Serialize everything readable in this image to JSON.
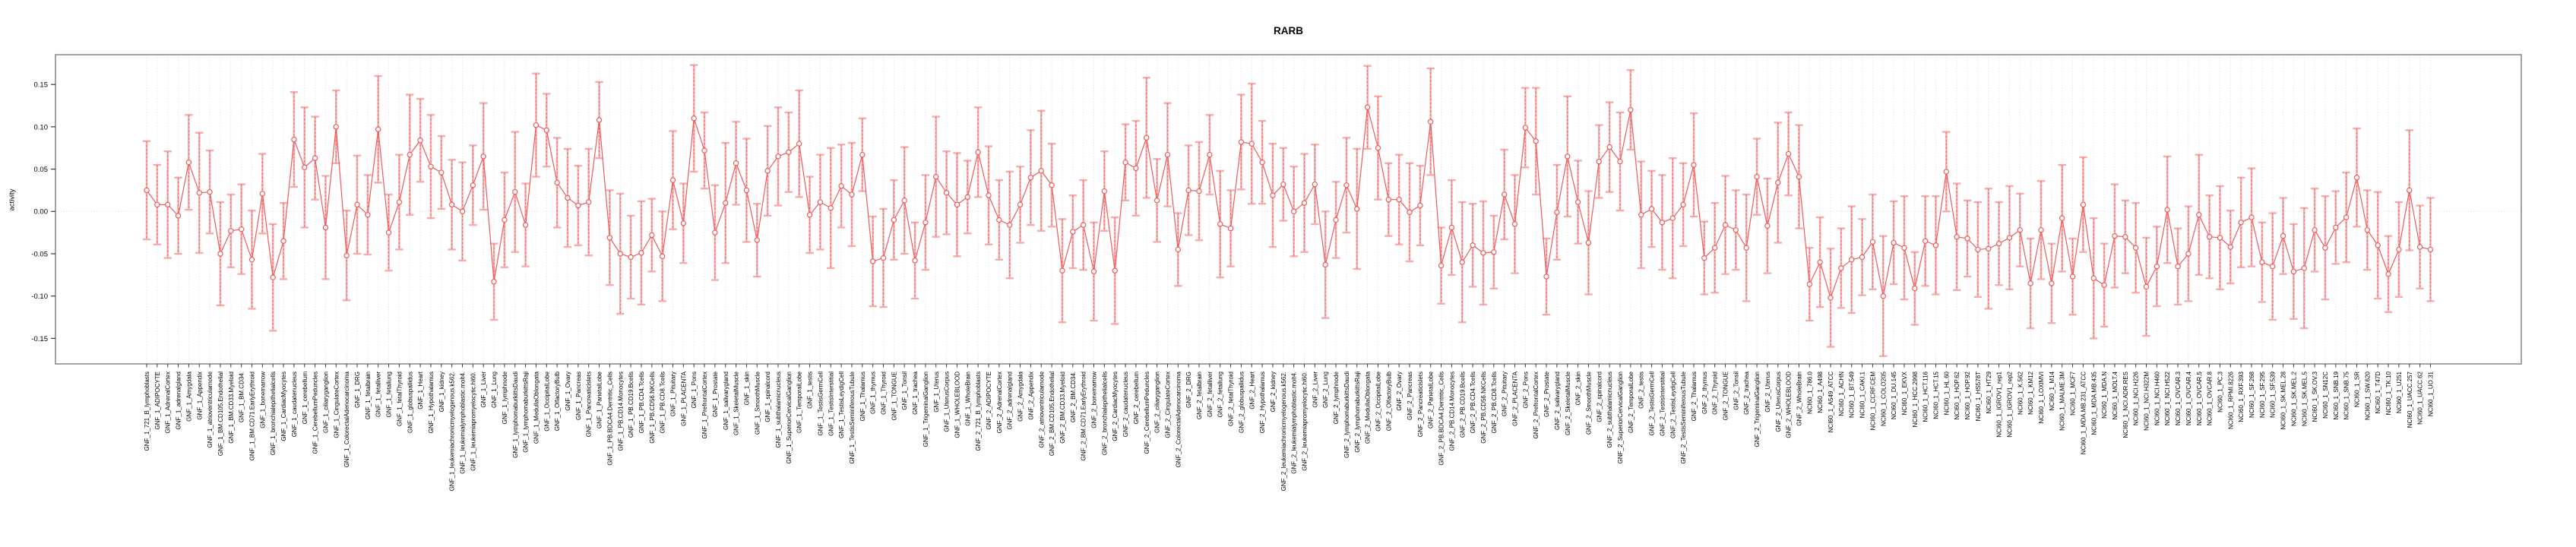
{
  "title": "RARB",
  "y_axis": {
    "label": "activity",
    "tick_labels": [
      "0.15",
      "0.10",
      "0.05",
      "0.00",
      "-0.05",
      "-0.10",
      "-0.15"
    ]
  },
  "chart_data": {
    "type": "line",
    "subtype": "points-with-error-bars",
    "title": "RARB",
    "xlabel": "",
    "ylabel": "activity",
    "ylim": [
      -0.18,
      0.185
    ],
    "yticks": [
      0.15,
      0.1,
      0.05,
      0.0,
      -0.05,
      -0.1,
      -0.15
    ],
    "grid": "dotted vertical gridline per category; dotted horizontal line at y=0",
    "legend_position": "none",
    "category_groups": [
      {
        "prefix": "GNF_1_",
        "names_ref": "tissue_names"
      },
      {
        "prefix": "GNF_2_",
        "names_ref": "tissue_names"
      },
      {
        "prefix": "NCI60_1_",
        "names_ref": "cell_line_names"
      }
    ],
    "tissue_names": [
      "721_B_lymphoblasts",
      "ADIPOCYTE",
      "AdrenalCortex",
      "adrenalgland",
      "Amygdala",
      "Appendix",
      "atrioventricularnode",
      "BM.CD105.Endothelial",
      "BM.CD33.Myeloid",
      "BM.CD34.",
      "BM.CD71.EarlyErythroid",
      "bonemarrow",
      "bronchialepithelialcells",
      "CardiacMyocytes",
      "caudatenucleus",
      "cerebellum",
      "CerebellumPeduncles",
      "ciliaryganglion",
      "CingulateCortex",
      "ColorectalAdenocarcinoma",
      "DRG",
      "fetalbrain",
      "fetalliver",
      "fetallung",
      "fetalThyroid",
      "globuspallidus",
      "Heart",
      "Hypothalamus",
      "kidney",
      "leukemiachronicmyelogenous.k562.",
      "leukemialymphoblastic.molt4.",
      "leukemiapromyelocytic.hl60.",
      "Liver",
      "Lung",
      "lymphnode",
      "lymphomaburkittsDaudi",
      "lymphomaburkittsRaji",
      "MedullaOblongata",
      "OccipitalLobe",
      "OlfactoryBulb",
      "Ovary",
      "Pancreas",
      "Pancreaticislets",
      "ParietalLobe",
      "PB.BDCA4.Dentritic_Cells",
      "PB.CD14.Monocytes",
      "PB.CD19.Bcells",
      "PB.CD4.Tcells",
      "PB.CD56.NKCells",
      "PB.CD8.Tcells",
      "Pituitary",
      "PLACENTA",
      "Pons",
      "PrefrontalCortex",
      "Prostate",
      "salivarygland",
      "SkeletalMuscle",
      "skin",
      "SmoothMuscle",
      "spinalcord",
      "subthalamicnucleus",
      "SuperiorCervicalGanglion",
      "TemporalLobe",
      "testis",
      "TestisGermCell",
      "TestisInterstitial",
      "TestisLeydigCell",
      "TestisSeminiferousTubule",
      "Thalamus",
      "thymus",
      "Thyroid",
      "TONGUE",
      "Tonsil",
      "trachea",
      "TrigeminalGanglion",
      "Uterus",
      "UterusCorpus",
      "WHOLEBLOOD",
      "WholeBrain"
    ],
    "cell_line_names": [
      "786.0",
      "A498",
      "A549_ATCC",
      "ACHN",
      "BT.549",
      "CAKI.1",
      "CCRF.CEM",
      "COLO205",
      "DU.145",
      "EKVX",
      "HCC.2998",
      "HCT.116",
      "HCT.15",
      "HL.60",
      "HOP.62",
      "HOP.92",
      "HS578T",
      "HT29",
      "IGROV1_rep1",
      "IGROV1_rep2",
      "K.562",
      "KM12",
      "LOXIMVI",
      "M14",
      "MALME.3M",
      "MCF7",
      "MDA.MB.231_ATCC",
      "MDA.MB.435",
      "MDA.N",
      "MOLT.4",
      "NCI.ADR.RES",
      "NCI.H226",
      "NCI.H322M",
      "NCI.H460",
      "NCI.H522",
      "OVCAR.3",
      "OVCAR.4",
      "OVCAR.5",
      "OVCAR.8",
      "PC.3",
      "RPMI.8226",
      "RXF.393",
      "SF.268",
      "SF.295",
      "SF.539",
      "SK.MEL.28",
      "SK.MEL.2",
      "SK.MEL.5",
      "SK.OV.3",
      "SN12C",
      "SNB.19",
      "SNB.75",
      "SR",
      "SW.620",
      "T47D",
      "TK.10",
      "U251",
      "UACC.257",
      "UACC.62",
      "UO.31"
    ],
    "series": [
      {
        "name": "activity",
        "values": [
          0.025,
          0.008,
          0.008,
          -0.005,
          0.058,
          0.022,
          0.023,
          -0.05,
          -0.023,
          -0.021,
          -0.057,
          0.021,
          -0.078,
          -0.035,
          0.085,
          0.052,
          0.063,
          -0.019,
          0.1,
          -0.052,
          0.008,
          -0.004,
          0.097,
          -0.025,
          0.011,
          0.067,
          0.084,
          0.053,
          0.046,
          0.008,
          0.0,
          0.031,
          0.065,
          -0.083,
          -0.01,
          0.023,
          -0.016,
          0.102,
          0.096,
          0.034,
          0.016,
          0.007,
          0.011,
          0.108,
          -0.031,
          -0.05,
          -0.054,
          -0.049,
          -0.028,
          -0.053,
          0.037,
          -0.014,
          0.11,
          0.072,
          -0.025,
          0.01,
          0.057,
          0.025,
          -0.034,
          0.048,
          0.065,
          0.07,
          0.08,
          -0.004,
          0.011,
          0.004,
          0.03,
          0.02,
          0.067,
          -0.059,
          -0.055,
          -0.01,
          0.013,
          -0.058,
          -0.013,
          0.041,
          0.022,
          0.008,
          0.017,
          0.07,
          0.019,
          -0.01,
          -0.016,
          0.008,
          0.04,
          0.048,
          0.031,
          -0.07,
          -0.024,
          -0.016,
          -0.071,
          0.024,
          -0.07,
          0.058,
          0.051,
          0.087,
          0.013,
          0.067,
          -0.045,
          0.025,
          0.024,
          0.067,
          -0.015,
          -0.02,
          0.082,
          0.08,
          0.058,
          0.019,
          0.032,
          0.0,
          0.01,
          0.032,
          -0.063,
          -0.01,
          0.031,
          0.003,
          0.123,
          0.075,
          0.014,
          0.014,
          -0.001,
          0.007,
          0.106,
          -0.064,
          -0.019,
          -0.06,
          -0.04,
          -0.049,
          -0.048,
          0.02,
          -0.015,
          0.099,
          0.083,
          -0.077,
          -0.001,
          0.065,
          0.011,
          -0.037,
          0.059,
          0.076,
          0.059,
          0.12,
          -0.004,
          0.003,
          -0.013,
          -0.008,
          0.008,
          0.055,
          -0.055,
          -0.043,
          -0.016,
          -0.022,
          -0.043,
          0.041,
          -0.017,
          0.034,
          0.068,
          0.041,
          -0.086,
          -0.06,
          -0.102,
          -0.067,
          -0.057,
          -0.054,
          -0.036,
          -0.1,
          -0.037,
          -0.043,
          -0.091,
          -0.035,
          -0.04,
          0.047,
          -0.03,
          -0.032,
          -0.045,
          -0.044,
          -0.038,
          -0.031,
          -0.022,
          -0.085,
          -0.022,
          -0.085,
          -0.008,
          -0.077,
          0.008,
          -0.079,
          -0.087,
          -0.029,
          -0.03,
          -0.043,
          -0.089,
          -0.065,
          0.002,
          -0.065,
          -0.05,
          -0.004,
          -0.03,
          -0.031,
          -0.042,
          -0.013,
          -0.007,
          -0.06,
          -0.065,
          -0.029,
          -0.071,
          -0.067,
          -0.022,
          -0.043,
          -0.019,
          -0.007,
          0.04,
          -0.022,
          -0.04,
          -0.074,
          -0.045,
          0.025,
          -0.042,
          -0.045
        ]
      }
    ],
    "error_half_width_pattern": [
      0.058,
      0.047,
      0.063,
      0.045,
      0.056,
      0.071,
      0.049,
      0.061,
      0.043,
      0.053
    ],
    "colors": {
      "point_line": "#ef5a5a",
      "error_bar": "#f7a8a8",
      "error_dash": "#e95f5f",
      "gridline": "#dcdcdc",
      "zero_line": "#d8d8d8",
      "box": "#8c8c8c",
      "tick": "#3a3a3a",
      "text": "#000000"
    }
  }
}
